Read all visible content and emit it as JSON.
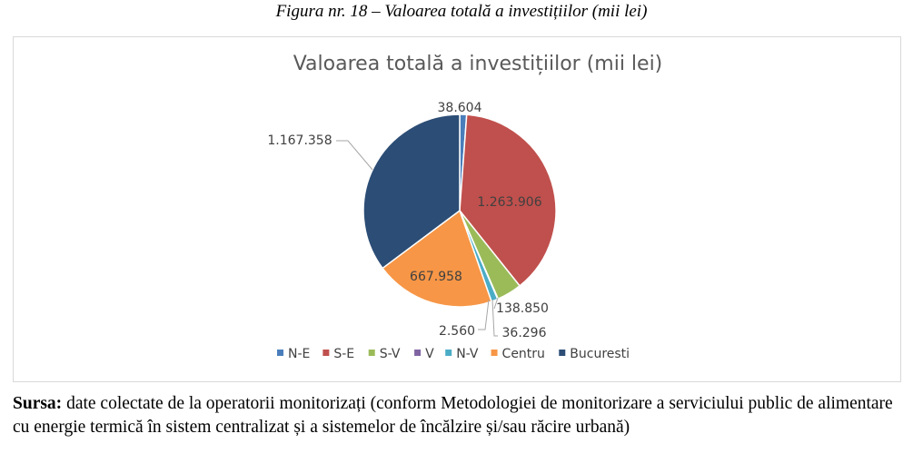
{
  "figure_caption": "Figura nr. 18 – Valoarea totală a investițiilor (mii lei)",
  "chart_data": {
    "type": "pie",
    "title": "Valoarea totală a investițiilor (mii lei)",
    "categories": [
      "N-E",
      "S-E",
      "S-V",
      "V",
      "N-V",
      "Centru",
      "Bucuresti"
    ],
    "values": [
      38604,
      1263906,
      138850,
      2560,
      36296,
      667958,
      1167358
    ],
    "value_labels": [
      "38.604",
      "1.263.906",
      "138.850",
      "2.560",
      "36.296",
      "667.958",
      "1.167.358"
    ],
    "colors": [
      "#4a7ebb",
      "#c0504d",
      "#9bbb59",
      "#8064a2",
      "#4bacc6",
      "#f79646",
      "#2c4d75"
    ],
    "legend_position": "bottom"
  },
  "source": {
    "label": "Sursa:",
    "text": " date colectate de la operatorii monitorizați (conform Metodologiei de monitorizare a serviciului public de alimentare cu energie termică în sistem centralizat și a sistemelor de încălzire și/sau răcire urbană)"
  }
}
